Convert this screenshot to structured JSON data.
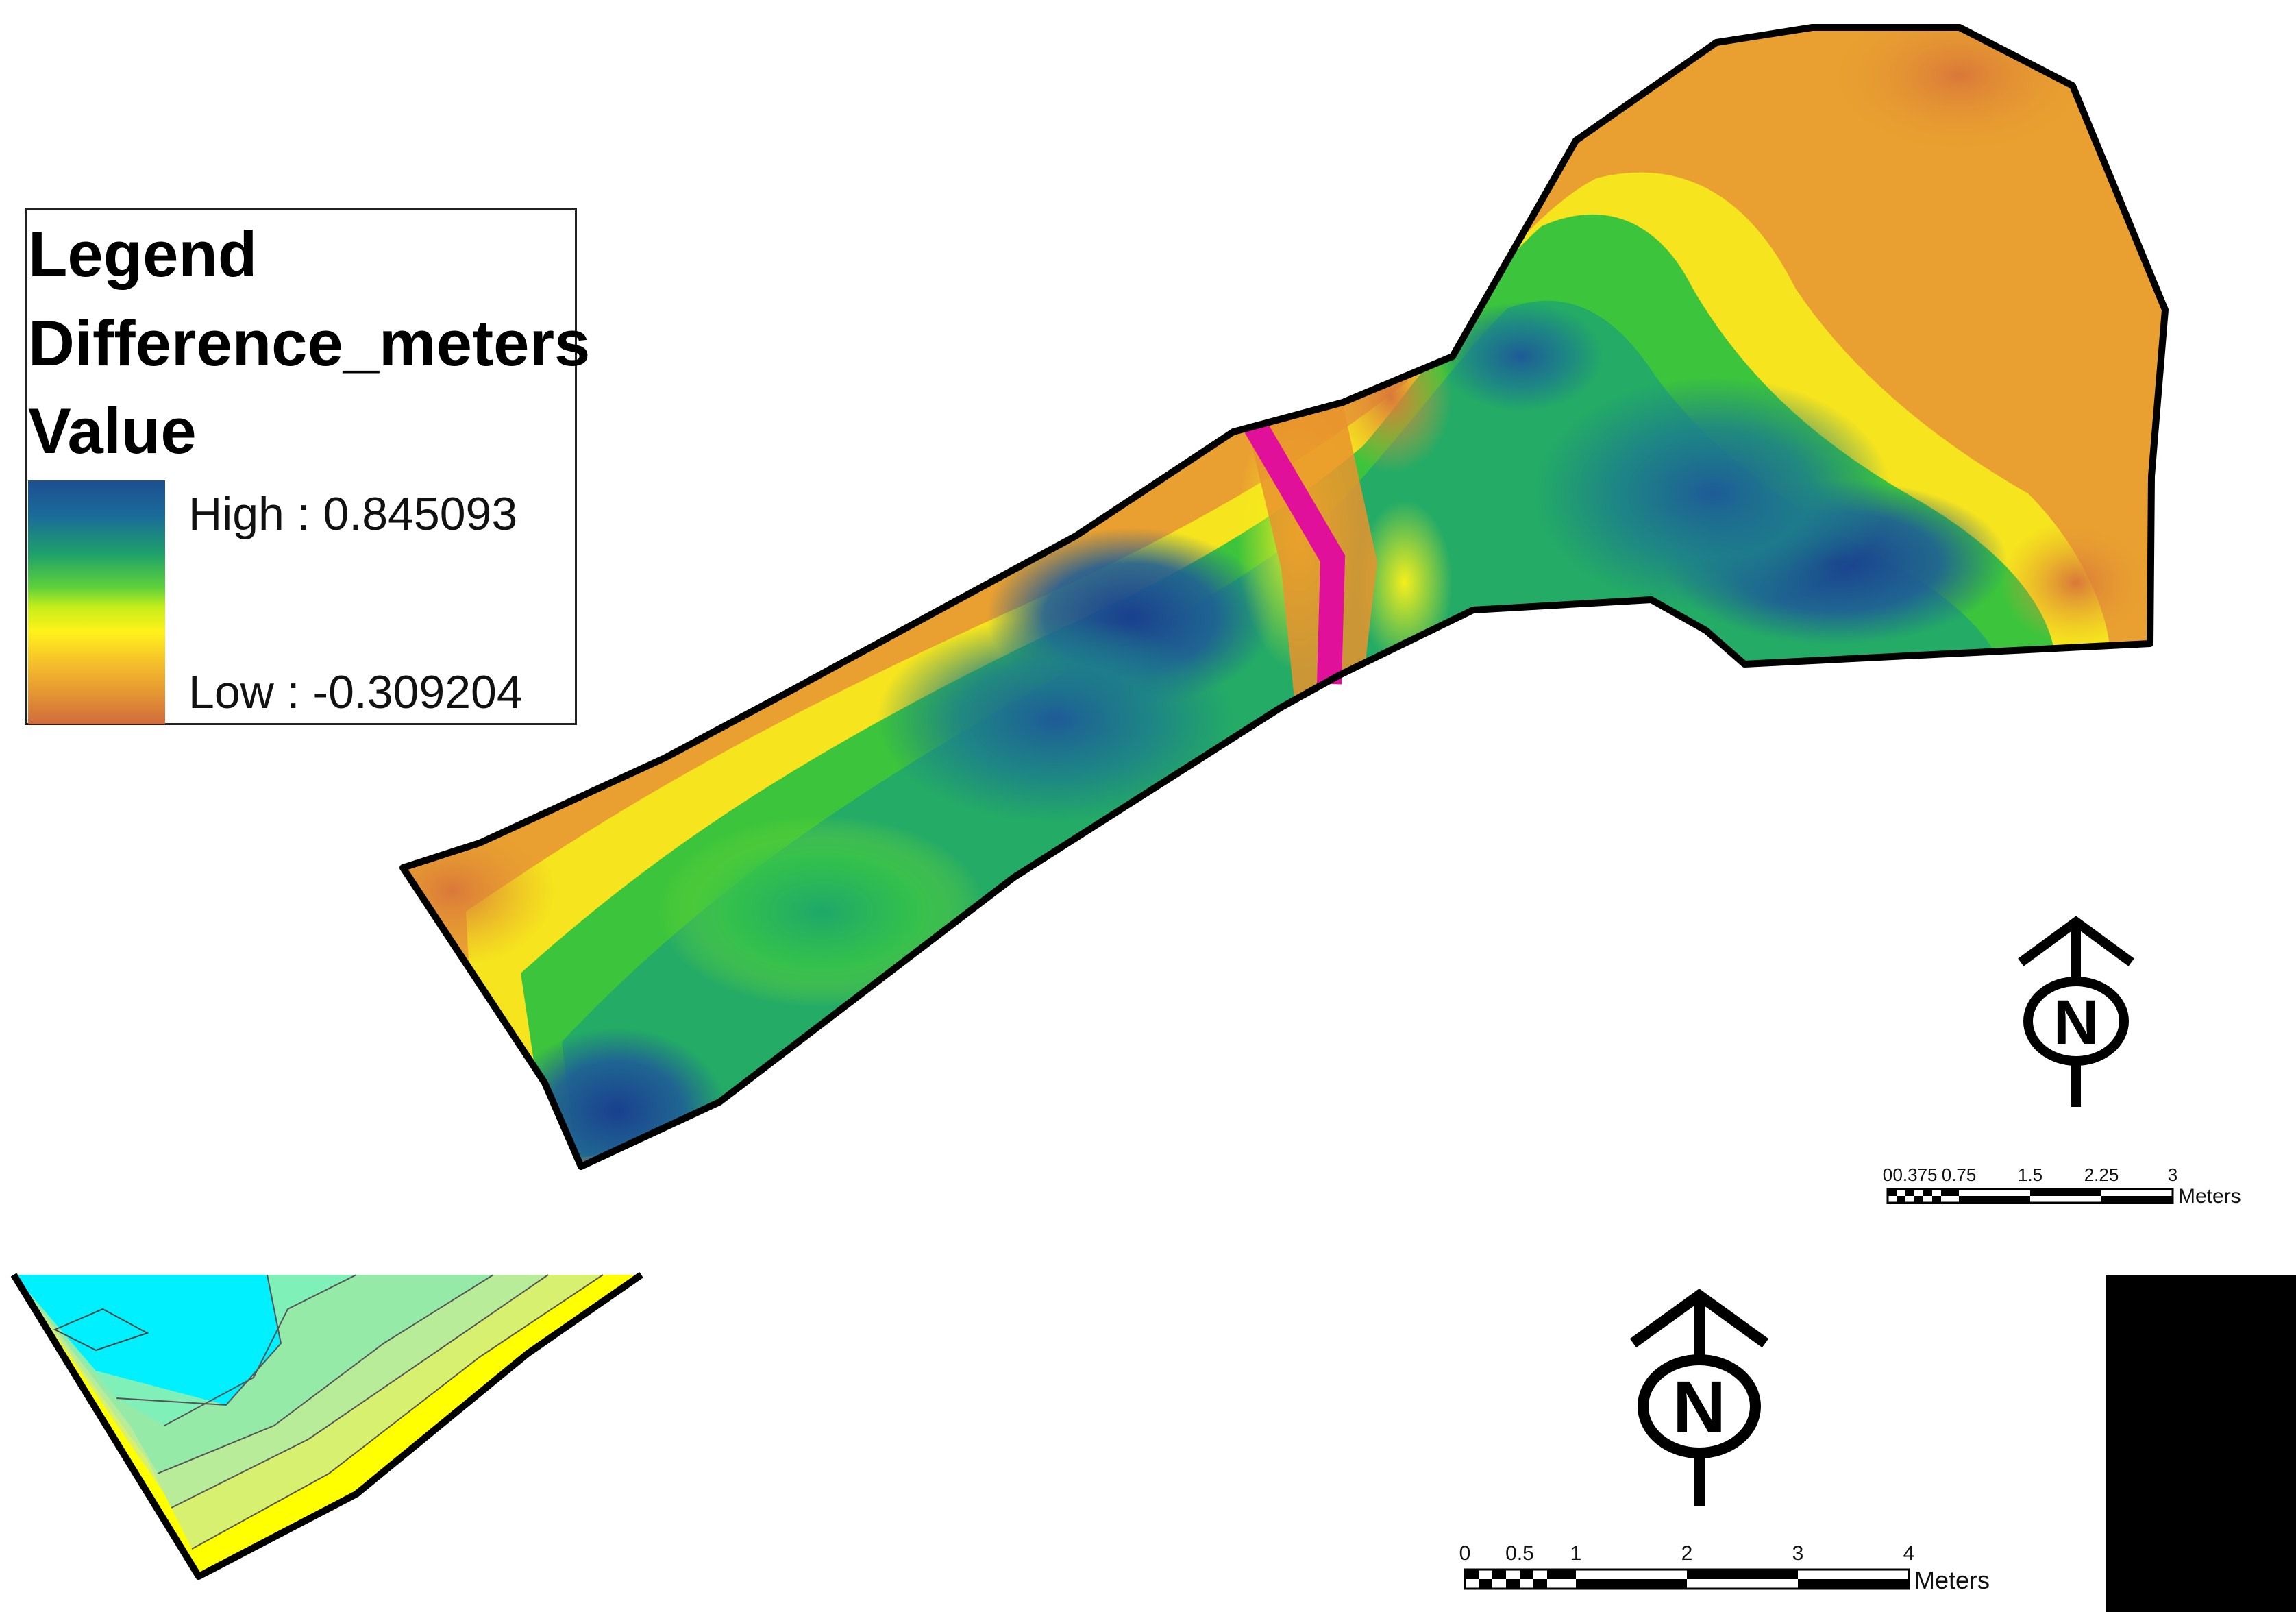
{
  "legend": {
    "title": "Legend",
    "layer_name": "Difference_meters",
    "field_name": "Value",
    "high_label": "High : 0.845093",
    "low_label": "Low : -0.309204",
    "ramp_colors": [
      "#1d4f91",
      "#1fa06a",
      "#5fd23a",
      "#fff21a",
      "#e79a32",
      "#cf6a3c"
    ]
  },
  "north_arrow_top": {
    "letter": "N"
  },
  "north_arrow_bottom": {
    "letter": "N"
  },
  "scale_bar_top": {
    "ticks": [
      "0",
      "0.375",
      "0.75",
      "1.5",
      "2.25",
      "3"
    ],
    "unit": "Meters"
  },
  "scale_bar_bottom": {
    "ticks": [
      "0",
      "0.5",
      "1",
      "2",
      "3",
      "4"
    ],
    "unit": "Meters"
  },
  "colors": {
    "high": "#1d4f91",
    "mid_green": "#3fc23a",
    "mid_yellow": "#fff21a",
    "low": "#cf6a3c",
    "cross_section_line": "#e0109a",
    "contour_cyan": "#00f0ff",
    "contour_yellow": "#ffff00"
  }
}
